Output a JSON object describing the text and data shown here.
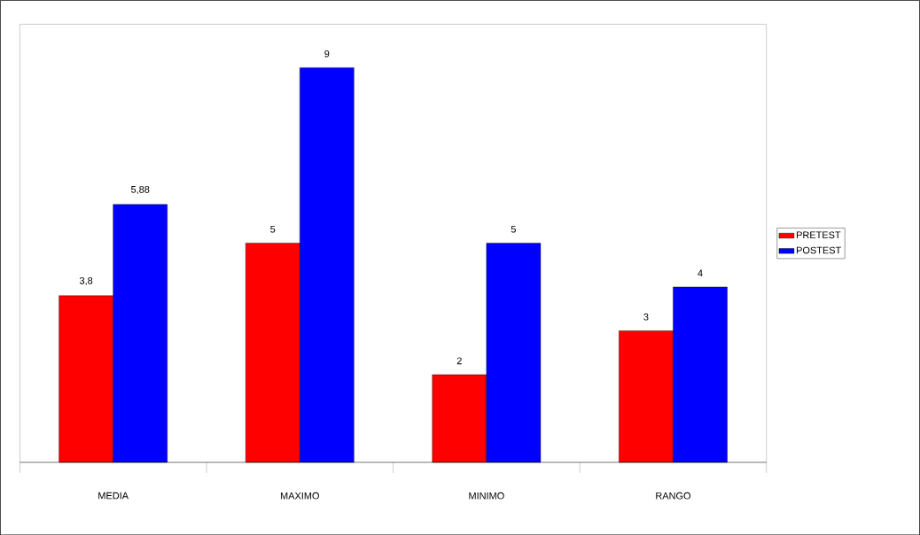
{
  "chart_data": {
    "type": "bar",
    "categories": [
      "MEDIA",
      "MAXIMO",
      "MINIMO",
      "RANGO"
    ],
    "series": [
      {
        "name": "PRETEST",
        "color": "#ff0000",
        "values": [
          3.8,
          5,
          2,
          3
        ],
        "value_labels": [
          "3,8",
          "5",
          "2",
          "3"
        ]
      },
      {
        "name": "POSTEST",
        "color": "#0000ff",
        "values": [
          5.88,
          9,
          5,
          4
        ],
        "value_labels": [
          "5,88",
          "9",
          "5",
          "4"
        ]
      }
    ],
    "legend": "right"
  }
}
